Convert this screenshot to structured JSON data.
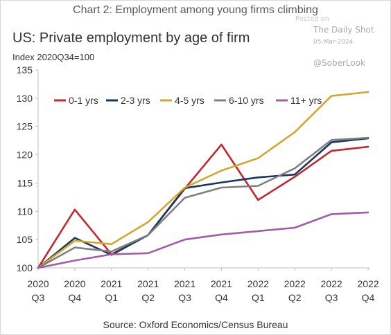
{
  "header": {
    "chart_label": "Chart 2: Employment among young firms climbing"
  },
  "watermark": {
    "posted_on": "Posted on",
    "site": "The Daily Shot",
    "date": "05-Mar-2024",
    "handle": "@SoberLook"
  },
  "source": "Source: Oxford Economics/Census Bureau",
  "colors": {
    "series_0_1": "#C0282D",
    "series_2_3": "#17375E",
    "series_4_5": "#D4A72C",
    "series_6_10": "#808080",
    "series_11plus": "#9E5EA8",
    "axis": "#bfbfbf"
  },
  "chart_data": {
    "type": "line",
    "title": "US: Private employment by age of firm",
    "subtitle": "Index 2020Q34=100",
    "categories": [
      [
        "2020",
        "Q3"
      ],
      [
        "2020",
        "Q4"
      ],
      [
        "2021",
        "Q1"
      ],
      [
        "2021",
        "Q2"
      ],
      [
        "2021",
        "Q3"
      ],
      [
        "2021",
        "Q4"
      ],
      [
        "2022",
        "Q1"
      ],
      [
        "2022",
        "Q2"
      ],
      [
        "2022",
        "Q3"
      ],
      [
        "2022",
        "Q4"
      ]
    ],
    "ylim": [
      100,
      135
    ],
    "yticks": [
      100,
      105,
      110,
      115,
      120,
      125,
      130,
      135
    ],
    "grid": false,
    "legend_position": "top",
    "series": [
      {
        "name": "0-1 yrs",
        "color": "#C0282D",
        "values": [
          100,
          110.3,
          102.4,
          105.8,
          114.0,
          121.8,
          112.0,
          116.1,
          120.7,
          121.4
        ]
      },
      {
        "name": "2-3 yrs",
        "color": "#17375E",
        "values": [
          100,
          105.3,
          102.3,
          105.8,
          114.1,
          115.1,
          116.0,
          116.5,
          122.2,
          122.9
        ]
      },
      {
        "name": "4-5 yrs",
        "color": "#D4A72C",
        "values": [
          100,
          104.8,
          104.2,
          108.1,
          114.2,
          117.2,
          119.4,
          124.0,
          130.4,
          131.1
        ]
      },
      {
        "name": "6-10 yrs",
        "color": "#808080",
        "values": [
          100,
          103.6,
          102.9,
          105.8,
          112.4,
          114.2,
          114.5,
          117.6,
          122.6,
          123.0
        ]
      },
      {
        "name": "11+ yrs",
        "color": "#9E5EA8",
        "values": [
          100,
          101.3,
          102.4,
          102.6,
          105.0,
          105.9,
          106.5,
          107.1,
          109.5,
          109.8
        ]
      }
    ]
  }
}
